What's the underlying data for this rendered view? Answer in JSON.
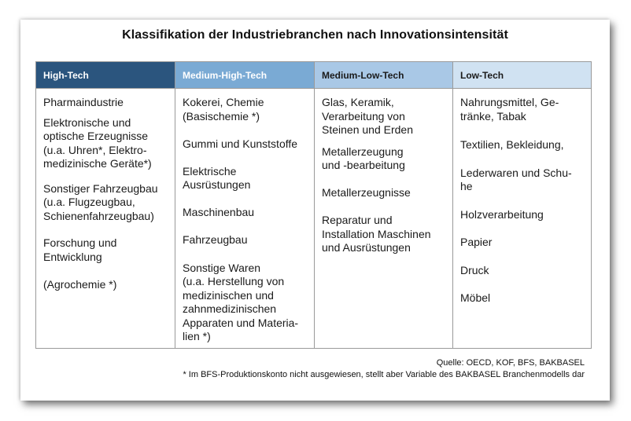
{
  "title": "Klassifikation der Industriebranchen nach Innovationsintensität",
  "columns": [
    {
      "header": "High-Tech",
      "items": [
        "Pharmaindustrie",
        "Elektronische und\noptische Erzeugnisse\n(u.a. Uhren*, Elektro-\nmedizinische Geräte*)",
        "Sonstiger Fahrzeugbau\n(u.a. Flugzeugbau,\nSchienenfahrzeugbau)",
        "Forschung und\nEntwicklung",
        "(Agrochemie *)"
      ]
    },
    {
      "header": "Medium-High-Tech",
      "items": [
        "Kokerei, Chemie\n(Basischemie *)",
        "Gummi und Kunststoffe",
        "Elektrische\nAusrüstungen",
        "Maschinenbau",
        "Fahrzeugbau",
        "Sonstige Waren\n(u.a. Herstellung von\nmedizinischen und\nzahnmedizinischen\nApparaten und Materia-\nlien *)"
      ]
    },
    {
      "header": "Medium-Low-Tech",
      "items": [
        "Glas, Keramik,\nVerarbeitung von\nSteinen und Erden",
        "Metallerzeugung\nund -bearbeitung",
        "Metallerzeugnisse",
        "Reparatur und\nInstallation Maschinen\nund Ausrüstungen"
      ]
    },
    {
      "header": "Low-Tech",
      "items": [
        "Nahrungsmittel, Ge-\ntränke, Tabak",
        "Textilien, Bekleidung,",
        "Lederwaren und Schu-\nhe",
        "Holzverarbeitung",
        "Papier",
        "Druck",
        "Möbel"
      ]
    }
  ],
  "source": "Quelle: OECD, KOF, BFS, BAKBASEL",
  "footnote": "* Im BFS-Produktionskonto nicht ausgewiesen, stellt aber Variable des BAKBASEL Branchenmodells dar",
  "colors": {
    "high_tech": "#2b557e",
    "medium_high_tech": "#7aaad4",
    "medium_low_tech": "#a9c8e6",
    "low_tech": "#d0e2f2"
  }
}
